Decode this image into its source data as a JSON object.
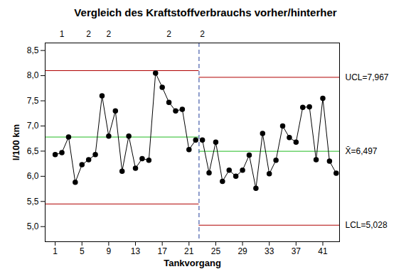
{
  "chart_data": {
    "type": "line",
    "title": "Vergleich des Kraftstoffverbrauchs vorher/hinterher",
    "x_label": "Tankvorgang",
    "y_label": "l/100 km",
    "x": [
      1,
      2,
      3,
      4,
      5,
      6,
      7,
      8,
      9,
      10,
      11,
      12,
      13,
      14,
      15,
      16,
      17,
      18,
      19,
      20,
      21,
      22,
      23,
      24,
      25,
      26,
      27,
      28,
      29,
      30,
      31,
      32,
      33,
      34,
      35,
      36,
      37,
      38,
      39,
      40,
      41,
      42,
      43
    ],
    "values": [
      6.43,
      6.47,
      6.78,
      5.88,
      6.23,
      6.33,
      6.43,
      7.6,
      6.8,
      7.3,
      6.1,
      6.8,
      6.16,
      6.35,
      6.32,
      8.05,
      7.77,
      7.47,
      7.3,
      7.33,
      6.53,
      6.72,
      6.72,
      6.07,
      6.68,
      5.9,
      6.12,
      6.0,
      6.12,
      6.42,
      5.76,
      6.85,
      6.05,
      6.32,
      7.0,
      6.77,
      6.68,
      7.37,
      7.38,
      6.33,
      7.55,
      6.3,
      6.06
    ],
    "color": "#000000",
    "marker": "circle",
    "xlim": [
      -0.5,
      43.5
    ],
    "xticks": [
      1,
      5,
      9,
      13,
      17,
      21,
      25,
      29,
      33,
      37,
      41
    ],
    "ylim": [
      4.7,
      8.65
    ],
    "yticks": [
      {
        "value": 5.0,
        "label": "5,0"
      },
      {
        "value": 5.5,
        "label": "5,5"
      },
      {
        "value": 6.0,
        "label": "6,0"
      },
      {
        "value": 6.5,
        "label": "6,5"
      },
      {
        "value": 7.0,
        "label": "7,0"
      },
      {
        "value": 7.5,
        "label": "7,5"
      },
      {
        "value": 8.0,
        "label": "8,0"
      },
      {
        "value": 8.5,
        "label": "8,5"
      }
    ],
    "grid": false,
    "stage_divider": 22.5,
    "stages": [
      {
        "from": -0.5,
        "to": 22.5,
        "ucl": 8.1,
        "mean": 6.78,
        "lcl": 5.45
      },
      {
        "from": 22.5,
        "to": 43.5,
        "ucl": 7.967,
        "mean": 6.497,
        "lcl": 5.028,
        "ucl_label": "UCL=7,967",
        "mean_label": "X̄=6,497",
        "lcl_label": "LCL=5,028"
      }
    ],
    "test_labels": [
      {
        "x": 2,
        "label": "1"
      },
      {
        "x": 6,
        "label": "2"
      },
      {
        "x": 9,
        "label": "2"
      },
      {
        "x": 18,
        "label": "2"
      },
      {
        "x": 23,
        "label": "2"
      }
    ]
  }
}
